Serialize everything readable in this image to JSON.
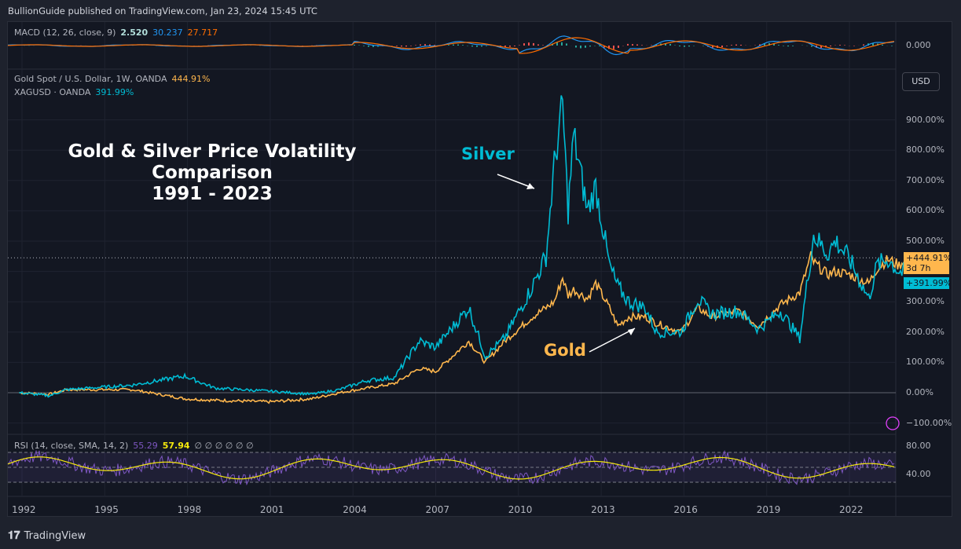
{
  "header": {
    "published": "BullionGuide published on TradingView.com, Jan 23, 2024 15:45 UTC"
  },
  "macd": {
    "label": "MACD (12, 26, close, 9)",
    "v1": "2.520",
    "v2": "30.237",
    "v3": "27.717",
    "axis": "0.000",
    "colors": {
      "v1": "#b2dfdb",
      "v2": "#2196f3",
      "v3": "#ff6d00"
    }
  },
  "legend": {
    "gold_label": "Gold Spot / U.S. Dollar, 1W, OANDA",
    "gold_value": "444.91%",
    "silver_label": "XAGUSD · OANDA",
    "silver_value": "391.99%"
  },
  "currency_button": "USD",
  "annotations": {
    "title_lines": [
      "Gold & Silver Price Volatility",
      "Comparison",
      "1991 - 2023"
    ],
    "silver": "Silver",
    "gold": "Gold"
  },
  "tags": {
    "gold": "+444.91%",
    "countdown": "3d 7h",
    "silver": "+391.99%"
  },
  "rsi": {
    "label": "RSI (14, close, SMA, 14, 2)",
    "v1": "55.29",
    "v2": "57.94",
    "extra": "∅ ∅ ∅ ∅ ∅ ∅",
    "axis": [
      "80.00",
      "40.00"
    ]
  },
  "footer": {
    "brand": "TradingView"
  },
  "chart_data": {
    "type": "line",
    "yscale": "percent",
    "ylim": [
      -100,
      950
    ],
    "yticks": [
      "900.00%",
      "800.00%",
      "700.00%",
      "600.00%",
      "500.00%",
      "300.00%",
      "200.00%",
      "100.00%",
      "0.00%",
      "−100.00%"
    ],
    "xticks": [
      "1992",
      "1995",
      "1998",
      "2001",
      "2004",
      "2007",
      "2010",
      "2013",
      "2016",
      "2019",
      "2022"
    ],
    "grid": true,
    "series": [
      {
        "name": "Gold Spot / U.S. Dollar",
        "color": "#ffb74d",
        "x": [
          1991.9,
          1993,
          1993.6,
          1996,
          1997.9,
          1999,
          2001,
          2002.5,
          2003.5,
          2004.5,
          2005.5,
          2006.4,
          2007,
          2008.2,
          2008.8,
          2009.5,
          2010.5,
          2011,
          2011.3,
          2011.6,
          2011.8,
          2012,
          2012.5,
          2012.8,
          2013.3,
          2013.6,
          2014,
          2014.6,
          2015,
          2015.9,
          2016.5,
          2017,
          2018,
          2018.7,
          2019.5,
          2020.2,
          2020.6,
          2020.7,
          2021.2,
          2021.5,
          2022,
          2022.7,
          2023,
          2023.4,
          2023.8,
          2024.06
        ],
        "y": [
          0,
          -5,
          10,
          10,
          -20,
          -25,
          -30,
          -20,
          0,
          15,
          30,
          80,
          70,
          170,
          100,
          170,
          250,
          280,
          300,
          380,
          320,
          340,
          310,
          360,
          280,
          220,
          250,
          250,
          230,
          200,
          280,
          250,
          270,
          220,
          290,
          330,
          450,
          430,
          390,
          400,
          390,
          360,
          410,
          440,
          420,
          444.91
        ]
      },
      {
        "name": "XAGUSD",
        "color": "#00bcd4",
        "x": [
          1991.9,
          1993,
          1993.6,
          1996,
          1997.9,
          1999,
          2001,
          2002.5,
          2003.5,
          2004.5,
          2005.5,
          2006.4,
          2007,
          2008.2,
          2008.8,
          2009.5,
          2010.5,
          2011,
          2011.3,
          2011.6,
          2011.8,
          2012,
          2012.5,
          2012.8,
          2013.3,
          2013.6,
          2014,
          2014.6,
          2015,
          2015.9,
          2016.5,
          2017,
          2018,
          2018.7,
          2019.5,
          2020.2,
          2020.6,
          2020.7,
          2021.2,
          2021.5,
          2022,
          2022.7,
          2023,
          2023.4,
          2023.8,
          2024.06
        ],
        "y": [
          0,
          -10,
          10,
          25,
          55,
          15,
          5,
          -5,
          10,
          40,
          50,
          170,
          150,
          280,
          120,
          180,
          350,
          450,
          750,
          950,
          600,
          850,
          600,
          680,
          420,
          350,
          300,
          280,
          200,
          200,
          310,
          260,
          270,
          210,
          270,
          180,
          450,
          520,
          460,
          500,
          440,
          310,
          420,
          440,
          400,
          391.99
        ]
      }
    ]
  }
}
